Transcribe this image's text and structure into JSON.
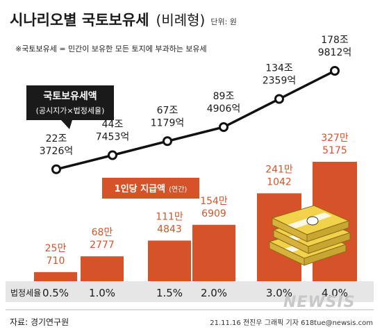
{
  "header": {
    "title_main": "시나리오별 국토보유세",
    "title_sub": "(비례형)",
    "unit": "단위: 원",
    "note": "※국토보유세 = 민간이 보유한 모든 토지에 부과하는 보유세"
  },
  "callout_line": {
    "line1": "국토보유세액",
    "line2": "(공시지가×법정세율)"
  },
  "callout_bar": {
    "line1": "1인당 지급액",
    "line2": "(연간)"
  },
  "xaxis_title": "법정세율",
  "source": "자료: 경기연구원",
  "credit": "21.11.16 전진우 그래픽 기자 618tue@newsis.com",
  "watermark": "NEWSIS",
  "colors": {
    "bar": "#d6532a",
    "bar_label": "#d6532a",
    "line": "#111111",
    "axis_band": "#e6e6e6"
  },
  "illustration": "money-bundle-icon",
  "chart_data": {
    "type": "bar",
    "categories": [
      "0.5%",
      "1.0%",
      "1.5%",
      "2.0%",
      "3.0%",
      "4.0%"
    ],
    "series": [
      {
        "name": "1인당 지급액",
        "type": "bar",
        "values": [
          250710,
          682777,
          1114843,
          1546909,
          2411042,
          3275175
        ],
        "labels": [
          [
            "25만",
            "710"
          ],
          [
            "68만",
            "2777"
          ],
          [
            "111만",
            "4843"
          ],
          [
            "154만",
            "6909"
          ],
          [
            "241만",
            "1042"
          ],
          [
            "327만",
            "5175"
          ]
        ]
      },
      {
        "name": "국토보유세액",
        "type": "line",
        "values": [
          223726,
          447453,
          671179,
          894906,
          1342359,
          1789812
        ],
        "labels": [
          [
            "22조",
            "3726억"
          ],
          [
            "44조",
            "7453억"
          ],
          [
            "67조",
            "1179억"
          ],
          [
            "89조",
            "4906억"
          ],
          [
            "134조",
            "2359억"
          ],
          [
            "178조",
            "9812억"
          ]
        ]
      }
    ]
  }
}
